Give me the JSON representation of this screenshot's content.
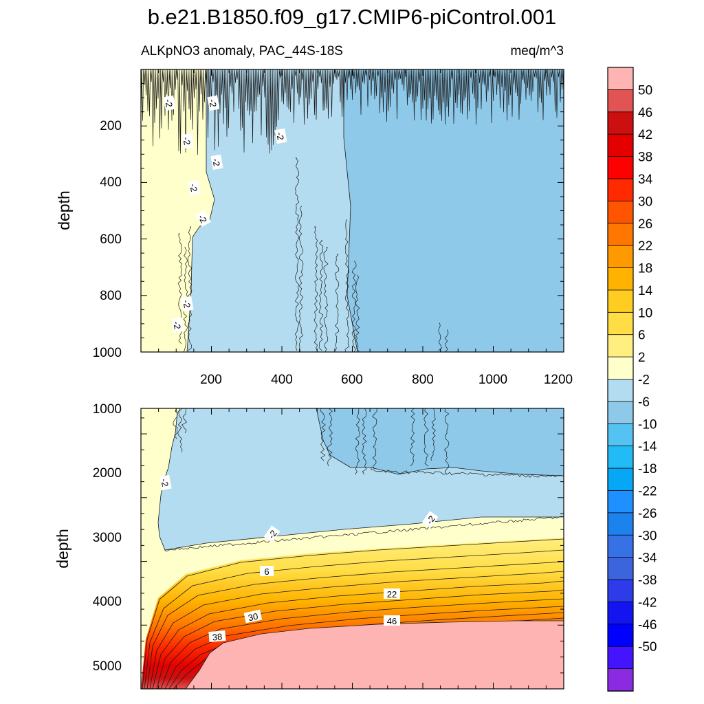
{
  "title": "b.e21.B1850.f09_g17.CMIP6-piControl.001",
  "subtitle_left": "ALKpNO3 anomaly, PAC_44S-18S",
  "subtitle_right": "meq/m^3",
  "chart_data": [
    {
      "type": "contour",
      "panel": "upper",
      "ylabel": "depth",
      "xlim": [
        0,
        1200
      ],
      "ylim": [
        1000,
        0
      ],
      "xticks": [
        200,
        400,
        600,
        800,
        1000,
        1200
      ],
      "yticks": [
        200,
        400,
        600,
        800,
        1000
      ],
      "regions": [
        {
          "name": "anomaly 2 to -2",
          "level": 0,
          "x_extent": [
            0,
            140
          ],
          "depth_extent": [
            0,
            1000
          ]
        },
        {
          "name": "anomaly -2 to -6",
          "level": -4,
          "x_extent": [
            140,
            600
          ],
          "depth_extent": [
            0,
            1000
          ]
        },
        {
          "name": "anomaly -6 to -10",
          "level": -8,
          "x_extent": [
            600,
            1200
          ],
          "depth_extent": [
            100,
            1000
          ]
        }
      ],
      "contour_labels": [
        "-2",
        "-2",
        "-2",
        "-2",
        "-2",
        "-2",
        "-2",
        "-2",
        "-2"
      ]
    },
    {
      "type": "contour",
      "panel": "lower",
      "ylabel": "depth",
      "xlim": [
        0,
        1200
      ],
      "ylim": [
        5400,
        1000
      ],
      "yticks": [
        1000,
        2000,
        3000,
        4000,
        5000
      ],
      "regions": [
        {
          "name": "anomaly -6 to -10",
          "level": -8,
          "x_extent": [
            500,
            1200
          ],
          "depth_extent": [
            1000,
            2100
          ]
        },
        {
          "name": "anomaly -2 to -6",
          "level": -4,
          "x_extent": [
            50,
            1200
          ],
          "depth_extent": [
            1000,
            3200
          ]
        },
        {
          "name": "anomaly 2 to -2",
          "level": 0,
          "depth_extent": [
            2700,
            3300
          ]
        },
        {
          "name": "positive gradient 6 to 46",
          "level": 26,
          "depth_extent": [
            3300,
            4300
          ]
        },
        {
          "name": "anomaly above 50",
          "level": 52,
          "x_extent": [
            200,
            1200
          ],
          "depth_extent": [
            4300,
            5400
          ]
        }
      ],
      "contour_labels": [
        "-2",
        "-2",
        "-2",
        "6",
        "22",
        "30",
        "46",
        "38"
      ]
    }
  ],
  "colorbar": {
    "labels": [
      "50",
      "46",
      "42",
      "38",
      "34",
      "30",
      "26",
      "22",
      "18",
      "14",
      "10",
      "6",
      "2",
      "-2",
      "-6",
      "-10",
      "-14",
      "-18",
      "-22",
      "-26",
      "-30",
      "-34",
      "-38",
      "-42",
      "-46",
      "-50"
    ],
    "colors": [
      "#ffb4b4",
      "#e25353",
      "#cc1010",
      "#e50000",
      "#ff0000",
      "#ff2a00",
      "#ff5500",
      "#ff7700",
      "#ff9900",
      "#ffb200",
      "#ffcc22",
      "#ffdd44",
      "#ffef80",
      "#ffffcc",
      "#b4dcf0",
      "#8ec9ea",
      "#55c3f1",
      "#22bbf5",
      "#06a7f4",
      "#1e90ff",
      "#1c82ee",
      "#3671e6",
      "#3c64dc",
      "#2d3be8",
      "#1414f0",
      "#0000ff",
      "#4414ff",
      "#8a2be2"
    ]
  }
}
